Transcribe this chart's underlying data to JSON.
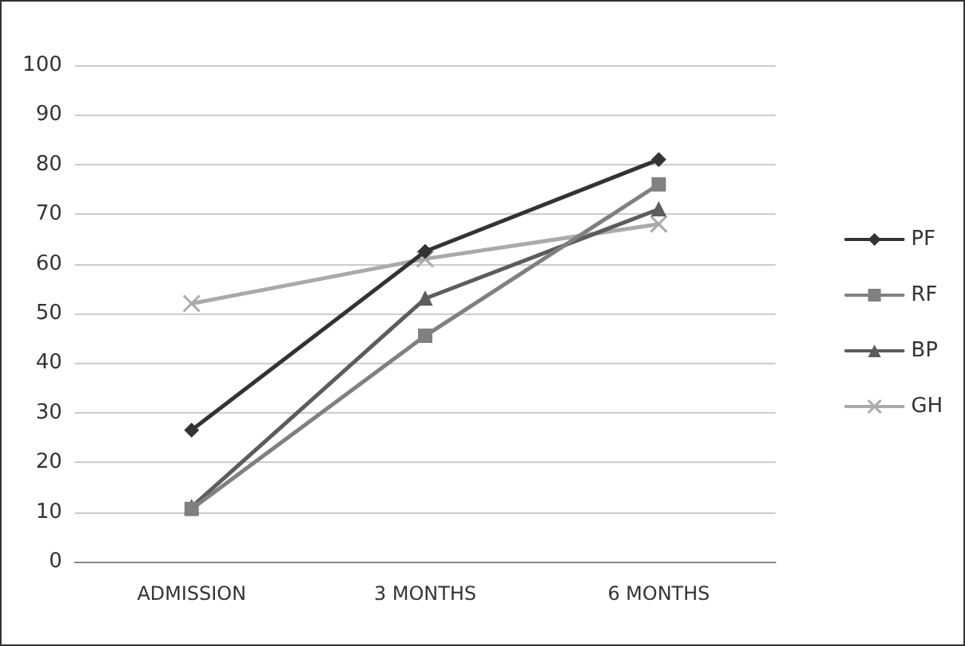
{
  "chart_data": {
    "type": "line",
    "categories": [
      "ADMISSION",
      "3 MONTHS",
      "6 MONTHS"
    ],
    "series": [
      {
        "name": "PF",
        "color": "#333333",
        "marker": "diamond",
        "values": [
          26.5,
          62.5,
          81
        ]
      },
      {
        "name": "RF",
        "color": "#808080",
        "marker": "square",
        "values": [
          10.6,
          45.5,
          76
        ]
      },
      {
        "name": "BP",
        "color": "#5c5c5c",
        "marker": "triangle",
        "values": [
          11,
          53,
          71
        ]
      },
      {
        "name": "GH",
        "color": "#aaaaaa",
        "marker": "cross",
        "values": [
          52,
          61,
          68
        ]
      }
    ],
    "ylim": [
      0,
      100
    ],
    "yticks": [
      0,
      10,
      20,
      30,
      40,
      50,
      60,
      70,
      80,
      90,
      100
    ],
    "grid": "y",
    "legend": "right"
  }
}
